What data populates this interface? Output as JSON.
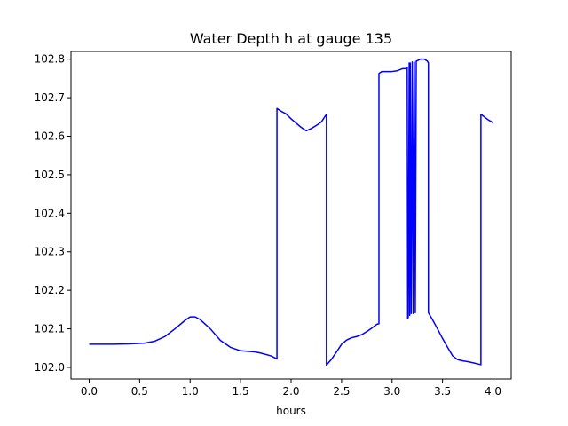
{
  "chart_data": {
    "type": "line",
    "title": "Water Depth h at gauge 135",
    "xlabel": "hours",
    "ylabel": "",
    "xlim": [
      -0.18,
      4.18
    ],
    "ylim": [
      101.97,
      102.82
    ],
    "x_ticks": [
      0.0,
      0.5,
      1.0,
      1.5,
      2.0,
      2.5,
      3.0,
      3.5,
      4.0
    ],
    "x_tick_labels": [
      "0.0",
      "0.5",
      "1.0",
      "1.5",
      "2.0",
      "2.5",
      "3.0",
      "3.5",
      "4.0"
    ],
    "y_ticks": [
      102.0,
      102.1,
      102.2,
      102.3,
      102.4,
      102.5,
      102.6,
      102.7,
      102.8
    ],
    "y_tick_labels": [
      "102.0",
      "102.1",
      "102.2",
      "102.3",
      "102.4",
      "102.5",
      "102.6",
      "102.7",
      "102.8"
    ],
    "grid": false,
    "legend": "none",
    "series": [
      {
        "color": "#0000ff",
        "x": [
          0.0,
          0.2,
          0.4,
          0.55,
          0.65,
          0.75,
          0.85,
          0.95,
          1.0,
          1.05,
          1.1,
          1.2,
          1.3,
          1.4,
          1.5,
          1.6,
          1.65,
          1.7,
          1.8,
          1.86,
          1.86,
          1.9,
          1.95,
          2.0,
          2.05,
          2.1,
          2.15,
          2.2,
          2.25,
          2.3,
          2.35,
          2.35,
          2.4,
          2.45,
          2.5,
          2.55,
          2.6,
          2.65,
          2.7,
          2.75,
          2.8,
          2.85,
          2.87,
          2.87,
          2.9,
          2.95,
          3.0,
          3.05,
          3.1,
          3.14,
          3.15,
          3.155,
          3.16,
          3.17,
          3.175,
          3.18,
          3.19,
          3.2,
          3.21,
          3.22,
          3.23,
          3.24,
          3.25,
          3.28,
          3.32,
          3.35,
          3.36,
          3.36,
          3.4,
          3.45,
          3.5,
          3.55,
          3.6,
          3.65,
          3.7,
          3.75,
          3.8,
          3.85,
          3.88,
          3.88,
          3.9,
          3.95,
          4.0
        ],
        "y": [
          102.06,
          102.06,
          102.061,
          102.063,
          102.068,
          102.08,
          102.1,
          102.122,
          102.131,
          102.131,
          102.124,
          102.1,
          102.07,
          102.052,
          102.043,
          102.041,
          102.04,
          102.037,
          102.03,
          102.022,
          102.672,
          102.665,
          102.658,
          102.645,
          102.634,
          102.623,
          102.614,
          102.62,
          102.628,
          102.637,
          102.657,
          102.006,
          102.021,
          102.04,
          102.06,
          102.071,
          102.077,
          102.08,
          102.085,
          102.093,
          102.102,
          102.112,
          102.113,
          102.763,
          102.768,
          102.768,
          102.768,
          102.77,
          102.775,
          102.776,
          102.778,
          102.126,
          102.13,
          102.79,
          102.135,
          102.79,
          102.14,
          102.793,
          102.14,
          102.793,
          102.142,
          102.795,
          102.796,
          102.8,
          102.8,
          102.795,
          102.79,
          102.142,
          102.124,
          102.1,
          102.075,
          102.052,
          102.03,
          102.02,
          102.017,
          102.015,
          102.012,
          102.009,
          102.007,
          102.657,
          102.653,
          102.643,
          102.635
        ]
      }
    ]
  }
}
